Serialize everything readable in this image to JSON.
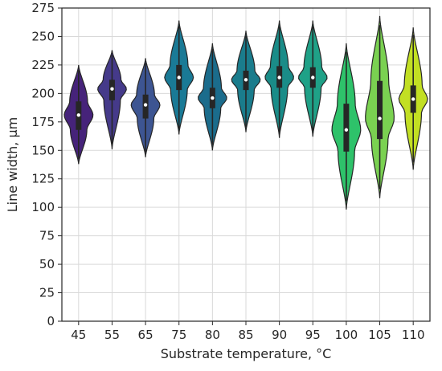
{
  "chart_data": {
    "type": "violin",
    "xlabel": "Substrate temperature, °C",
    "ylabel": "Line width, μm",
    "categories": [
      "45",
      "55",
      "65",
      "75",
      "80",
      "85",
      "90",
      "95",
      "100",
      "105",
      "110"
    ],
    "ylim": [
      0,
      275
    ],
    "yticks": [
      0,
      25,
      50,
      75,
      100,
      125,
      150,
      175,
      200,
      225,
      250,
      275
    ],
    "grid": true,
    "colors": [
      "#46237a",
      "#453a8a",
      "#3d5592",
      "#1a7a96",
      "#1b6c8c",
      "#1a7c8c",
      "#1a8c88",
      "#1fa187",
      "#2ec26a",
      "#7ad151",
      "#c2df23"
    ],
    "series": [
      {
        "min": 138,
        "q1": 168,
        "median": 181,
        "q3": 193,
        "max": 225
      },
      {
        "min": 151,
        "q1": 194,
        "median": 204,
        "q3": 212,
        "max": 238
      },
      {
        "min": 144,
        "q1": 178,
        "median": 190,
        "q3": 199,
        "max": 231
      },
      {
        "min": 164,
        "q1": 203,
        "median": 214,
        "q3": 225,
        "max": 264
      },
      {
        "min": 150,
        "q1": 187,
        "median": 196,
        "q3": 205,
        "max": 244
      },
      {
        "min": 166,
        "q1": 203,
        "median": 212,
        "q3": 220,
        "max": 255
      },
      {
        "min": 161,
        "q1": 205,
        "median": 214,
        "q3": 224,
        "max": 264
      },
      {
        "min": 162,
        "q1": 205,
        "median": 214,
        "q3": 223,
        "max": 264
      },
      {
        "min": 98,
        "q1": 149,
        "median": 168,
        "q3": 191,
        "max": 244
      },
      {
        "min": 108,
        "q1": 160,
        "median": 178,
        "q3": 211,
        "max": 268
      },
      {
        "min": 133,
        "q1": 183,
        "median": 195,
        "q3": 207,
        "max": 258
      }
    ]
  }
}
